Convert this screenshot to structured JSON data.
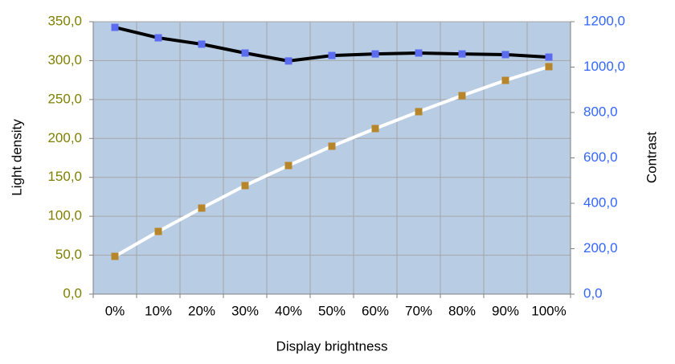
{
  "chart_data": {
    "type": "line",
    "xlabel": "Display brightness",
    "ylabel": "Light density",
    "y2label": "Contrast",
    "categories": [
      "0%",
      "10%",
      "20%",
      "30%",
      "40%",
      "50%",
      "60%",
      "70%",
      "80%",
      "90%",
      "100%"
    ],
    "series": [
      {
        "color": "#ffffff",
        "marker_color": "#b8862a",
        "values": [
          48.5,
          80.5,
          110.5,
          139.4,
          165.2,
          190,
          212.7,
          234.4,
          255,
          274.6,
          292.2
        ]
      },
      {
        "color": "#000000",
        "marker_color": "#5b6cf0",
        "axis": "y2",
        "values": [
          1175,
          1129,
          1101,
          1062,
          1027,
          1051,
          1058,
          1062,
          1058,
          1055,
          1044
        ]
      }
    ],
    "ylim": [
      0,
      350
    ],
    "yticks": [
      {
        "value": 0,
        "label": "0,0"
      },
      {
        "value": 50,
        "label": "50,0"
      },
      {
        "value": 100,
        "label": "100,0"
      },
      {
        "value": 150,
        "label": "150,0"
      },
      {
        "value": 200,
        "label": "200,0"
      },
      {
        "value": 250,
        "label": "250,0"
      },
      {
        "value": 300,
        "label": "300,0"
      },
      {
        "value": 350,
        "label": "350,0"
      }
    ],
    "y2lim": [
      0,
      1200
    ],
    "y2ticks": [
      {
        "value": 0,
        "label": "0,0"
      },
      {
        "value": 200,
        "label": "200,0"
      },
      {
        "value": 400,
        "label": "400,0"
      },
      {
        "value": 600,
        "label": "600,0"
      },
      {
        "value": 800,
        "label": "800,0"
      },
      {
        "value": 1000,
        "label": "1000,0"
      },
      {
        "value": 1200,
        "label": "1200,0"
      }
    ],
    "ytick_color": "#808000",
    "y2tick_color": "#3366ff",
    "plot_background": "#b8cce4",
    "grid": true
  }
}
